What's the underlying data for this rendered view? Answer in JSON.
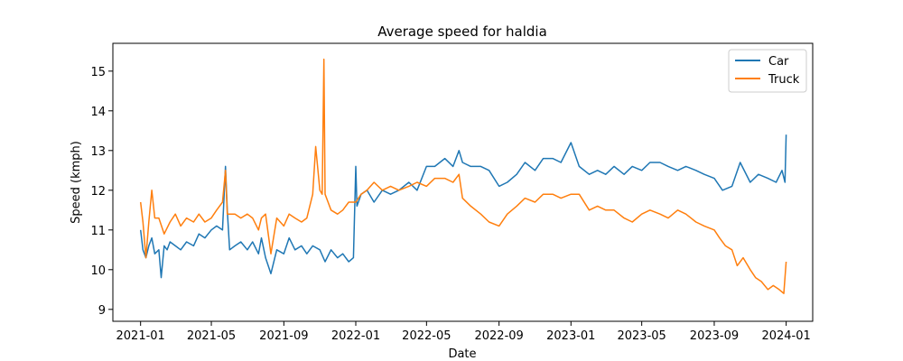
{
  "chart_data": {
    "type": "line",
    "title": "Average speed for haldia",
    "xlabel": "Date",
    "ylabel": "Speed (kmph)",
    "xlim": [
      "2020-11-15",
      "2024-02-15"
    ],
    "ylim": [
      8.7,
      15.7
    ],
    "x_ticks": [
      "2021-01",
      "2021-05",
      "2021-09",
      "2022-01",
      "2022-05",
      "2022-09",
      "2023-01",
      "2023-05",
      "2023-09",
      "2024-01"
    ],
    "y_ticks": [
      9,
      10,
      11,
      12,
      13,
      14,
      15
    ],
    "grid": false,
    "legend_position": "top-right",
    "series": [
      {
        "name": "Car",
        "color": "#1f77b4",
        "x": [
          "2021-01-01",
          "2021-01-05",
          "2021-01-10",
          "2021-01-15",
          "2021-01-20",
          "2021-01-25",
          "2021-02-01",
          "2021-02-05",
          "2021-02-10",
          "2021-02-15",
          "2021-02-20",
          "2021-03-01",
          "2021-03-10",
          "2021-03-20",
          "2021-04-01",
          "2021-04-10",
          "2021-04-20",
          "2021-05-01",
          "2021-05-10",
          "2021-05-20",
          "2021-05-25",
          "2021-05-28",
          "2021-06-01",
          "2021-06-10",
          "2021-06-20",
          "2021-07-01",
          "2021-07-10",
          "2021-07-20",
          "2021-07-25",
          "2021-08-01",
          "2021-08-10",
          "2021-08-20",
          "2021-09-01",
          "2021-09-10",
          "2021-09-20",
          "2021-10-01",
          "2021-10-10",
          "2021-10-20",
          "2021-11-01",
          "2021-11-10",
          "2021-11-20",
          "2021-12-01",
          "2021-12-10",
          "2021-12-20",
          "2021-12-28",
          "2022-01-01",
          "2022-01-03",
          "2022-01-10",
          "2022-01-20",
          "2022-02-01",
          "2022-02-15",
          "2022-03-01",
          "2022-03-15",
          "2022-04-01",
          "2022-04-15",
          "2022-05-01",
          "2022-05-15",
          "2022-06-01",
          "2022-06-15",
          "2022-06-25",
          "2022-07-01",
          "2022-07-15",
          "2022-08-01",
          "2022-08-15",
          "2022-09-01",
          "2022-09-15",
          "2022-10-01",
          "2022-10-15",
          "2022-11-01",
          "2022-11-15",
          "2022-12-01",
          "2022-12-15",
          "2023-01-01",
          "2023-01-15",
          "2023-02-01",
          "2023-02-15",
          "2023-03-01",
          "2023-03-15",
          "2023-04-01",
          "2023-04-15",
          "2023-05-01",
          "2023-05-15",
          "2023-06-01",
          "2023-06-15",
          "2023-07-01",
          "2023-07-15",
          "2023-08-01",
          "2023-08-15",
          "2023-09-01",
          "2023-09-15",
          "2023-10-01",
          "2023-10-15",
          "2023-11-01",
          "2023-11-15",
          "2023-12-01",
          "2023-12-15",
          "2023-12-25",
          "2023-12-30",
          "2024-01-01"
        ],
        "y": [
          11.0,
          10.5,
          10.3,
          10.6,
          10.8,
          10.4,
          10.5,
          9.8,
          10.6,
          10.5,
          10.7,
          10.6,
          10.5,
          10.7,
          10.6,
          10.9,
          10.8,
          11.0,
          11.1,
          11.0,
          12.6,
          11.5,
          10.5,
          10.6,
          10.7,
          10.5,
          10.7,
          10.4,
          10.8,
          10.3,
          9.9,
          10.5,
          10.4,
          10.8,
          10.5,
          10.6,
          10.4,
          10.6,
          10.5,
          10.2,
          10.5,
          10.3,
          10.4,
          10.2,
          10.3,
          12.6,
          11.6,
          11.9,
          12.0,
          11.7,
          12.0,
          11.9,
          12.0,
          12.2,
          12.0,
          12.6,
          12.6,
          12.8,
          12.6,
          13.0,
          12.7,
          12.6,
          12.6,
          12.5,
          12.1,
          12.2,
          12.4,
          12.7,
          12.5,
          12.8,
          12.8,
          12.7,
          13.2,
          12.6,
          12.4,
          12.5,
          12.4,
          12.6,
          12.4,
          12.6,
          12.5,
          12.7,
          12.7,
          12.6,
          12.5,
          12.6,
          12.5,
          12.4,
          12.3,
          12.0,
          12.1,
          12.7,
          12.2,
          12.4,
          12.3,
          12.2,
          12.5,
          12.2,
          13.4
        ]
      },
      {
        "name": "Truck",
        "color": "#ff7f0e",
        "x": [
          "2021-01-01",
          "2021-01-05",
          "2021-01-10",
          "2021-01-15",
          "2021-01-20",
          "2021-01-25",
          "2021-02-01",
          "2021-02-10",
          "2021-02-20",
          "2021-03-01",
          "2021-03-10",
          "2021-03-20",
          "2021-04-01",
          "2021-04-10",
          "2021-04-20",
          "2021-05-01",
          "2021-05-10",
          "2021-05-20",
          "2021-05-25",
          "2021-05-28",
          "2021-06-01",
          "2021-06-10",
          "2021-06-20",
          "2021-07-01",
          "2021-07-10",
          "2021-07-20",
          "2021-07-25",
          "2021-08-01",
          "2021-08-10",
          "2021-08-20",
          "2021-09-01",
          "2021-09-10",
          "2021-09-20",
          "2021-10-01",
          "2021-10-10",
          "2021-10-20",
          "2021-10-25",
          "2021-11-01",
          "2021-11-05",
          "2021-11-08",
          "2021-11-10",
          "2021-11-15",
          "2021-11-20",
          "2021-12-01",
          "2021-12-10",
          "2021-12-20",
          "2022-01-01",
          "2022-01-10",
          "2022-01-20",
          "2022-02-01",
          "2022-02-15",
          "2022-03-01",
          "2022-03-15",
          "2022-04-01",
          "2022-04-15",
          "2022-05-01",
          "2022-05-15",
          "2022-06-01",
          "2022-06-15",
          "2022-06-25",
          "2022-07-01",
          "2022-07-15",
          "2022-08-01",
          "2022-08-15",
          "2022-09-01",
          "2022-09-15",
          "2022-10-01",
          "2022-10-15",
          "2022-11-01",
          "2022-11-15",
          "2022-12-01",
          "2022-12-15",
          "2023-01-01",
          "2023-01-15",
          "2023-02-01",
          "2023-02-15",
          "2023-03-01",
          "2023-03-15",
          "2023-04-01",
          "2023-04-15",
          "2023-05-01",
          "2023-05-15",
          "2023-06-01",
          "2023-06-15",
          "2023-07-01",
          "2023-07-15",
          "2023-08-01",
          "2023-08-15",
          "2023-09-01",
          "2023-09-10",
          "2023-09-20",
          "2023-10-01",
          "2023-10-10",
          "2023-10-20",
          "2023-11-01",
          "2023-11-10",
          "2023-11-20",
          "2023-12-01",
          "2023-12-10",
          "2023-12-20",
          "2023-12-28",
          "2024-01-01"
        ],
        "y": [
          11.7,
          11.2,
          10.3,
          11.2,
          12.0,
          11.3,
          11.3,
          10.9,
          11.2,
          11.4,
          11.1,
          11.3,
          11.2,
          11.4,
          11.2,
          11.3,
          11.5,
          11.7,
          12.5,
          11.4,
          11.4,
          11.4,
          11.3,
          11.4,
          11.3,
          11.0,
          11.3,
          11.4,
          10.4,
          11.3,
          11.1,
          11.4,
          11.3,
          11.2,
          11.3,
          11.9,
          13.1,
          12.0,
          11.9,
          15.3,
          11.9,
          11.7,
          11.5,
          11.4,
          11.5,
          11.7,
          11.7,
          11.9,
          12.0,
          12.2,
          12.0,
          12.1,
          12.0,
          12.1,
          12.2,
          12.1,
          12.3,
          12.3,
          12.2,
          12.4,
          11.8,
          11.6,
          11.4,
          11.2,
          11.1,
          11.4,
          11.6,
          11.8,
          11.7,
          11.9,
          11.9,
          11.8,
          11.9,
          11.9,
          11.5,
          11.6,
          11.5,
          11.5,
          11.3,
          11.2,
          11.4,
          11.5,
          11.4,
          11.3,
          11.5,
          11.4,
          11.2,
          11.1,
          11.0,
          10.8,
          10.6,
          10.5,
          10.1,
          10.3,
          10.0,
          9.8,
          9.7,
          9.5,
          9.6,
          9.5,
          9.4,
          10.2
        ]
      }
    ]
  }
}
